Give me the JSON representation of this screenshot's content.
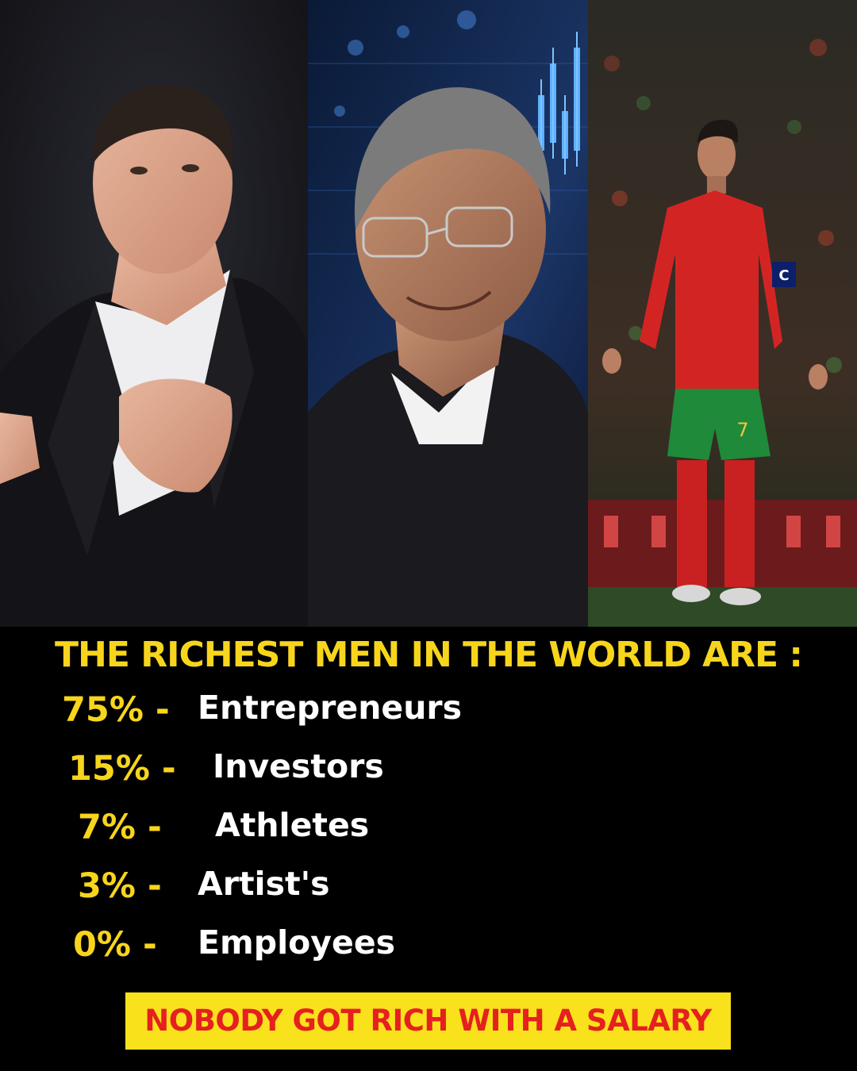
{
  "headline": "THE RICHEST MEN IN THE WORLD ARE :",
  "photos": [
    {
      "icon": "businessman-photo-icon"
    },
    {
      "icon": "investor-photo-icon"
    },
    {
      "icon": "footballer-photo-icon",
      "jersey_number": "7",
      "armband": "C"
    }
  ],
  "stats": [
    {
      "percent": "75% -",
      "label": "Entrepreneurs"
    },
    {
      "percent": "15% -",
      "label": "Investors"
    },
    {
      "percent": "7% -",
      "label": "Athletes"
    },
    {
      "percent": "3% -",
      "label": "Artist's"
    },
    {
      "percent": "0% -",
      "label": "Employees"
    }
  ],
  "banner": "NOBODY GOT RICH WITH A SALARY",
  "colors": {
    "background": "#000000",
    "headline": "#f7d51c",
    "percent": "#f7d51c",
    "label": "#ffffff",
    "banner_bg": "#f9e11b",
    "banner_text": "#e5201f"
  }
}
